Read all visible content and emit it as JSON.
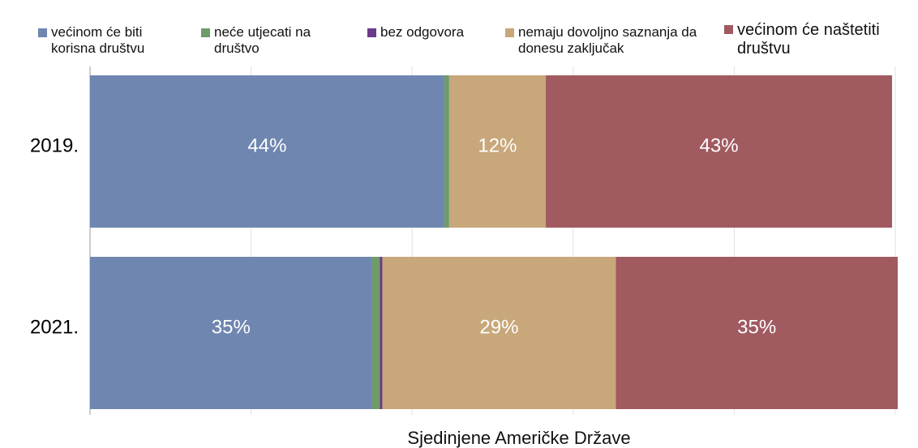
{
  "chart_data": {
    "type": "stacked_barh",
    "categories": [
      "2019.",
      "2021."
    ],
    "series": [
      {
        "name": "većinom će biti korisna društvu",
        "color": "#6f86b0",
        "values": [
          44,
          35
        ],
        "value_labels": [
          "44%",
          "35%"
        ]
      },
      {
        "name": "neće utjecati na društvo",
        "color": "#6f9b6a",
        "values": [
          0.6,
          1
        ],
        "value_labels": [
          null,
          null
        ]
      },
      {
        "name": "bez odgovora",
        "color": "#6b3a88",
        "values": [
          0,
          0.3
        ],
        "value_labels": [
          null,
          null
        ]
      },
      {
        "name": "nemaju dovoljno saznanja da donesu zaključak",
        "color": "#c8a77a",
        "values": [
          12,
          29
        ],
        "value_labels": [
          "12%",
          "29%"
        ]
      },
      {
        "name": "većinom će naštetiti društvu",
        "color": "#a05a60",
        "values": [
          43,
          35
        ],
        "value_labels": [
          "43%",
          "35%"
        ]
      }
    ],
    "xlabel": "Sjedinjene Američke Države",
    "xlim": [
      0,
      100
    ],
    "xticks": [
      0,
      20,
      40,
      60,
      80,
      100
    ],
    "grid": true
  }
}
